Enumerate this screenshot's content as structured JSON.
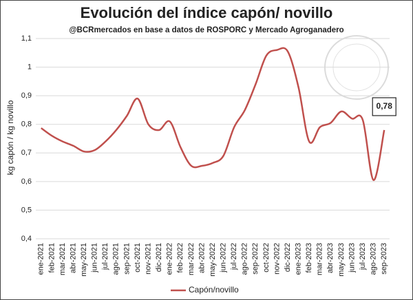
{
  "chart_data": {
    "type": "line",
    "title": "Evolución del índice capón/ novillo",
    "subtitle": "@BCRmercados  en base a datos de ROSPORC y Mercado Agroganadero",
    "y_label": "kg capón / kg novillo",
    "categories": [
      "ene-2021",
      "feb-2021",
      "mar-2021",
      "abr-2021",
      "may-2021",
      "jun-2021",
      "jul-2021",
      "ago-2021",
      "sep-2021",
      "oct-2021",
      "nov-2021",
      "dic-2021",
      "ene-2022",
      "feb-2022",
      "mar-2022",
      "abr-2022",
      "may-2022",
      "jun-2022",
      "jul-2022",
      "ago-2022",
      "sep-2022",
      "oct-2022",
      "nov-2022",
      "dic-2022",
      "ene-2023",
      "feb-2023",
      "mar-2023",
      "abr-2023",
      "may-2023",
      "jun-2023",
      "jul-2023",
      "ago-2023",
      "sep-2023"
    ],
    "series": [
      {
        "name": "Capón/novillo",
        "color": "#c0504d",
        "values": [
          0.787,
          0.76,
          0.74,
          0.725,
          0.705,
          0.71,
          0.74,
          0.78,
          0.83,
          0.89,
          0.8,
          0.78,
          0.81,
          0.72,
          0.655,
          0.655,
          0.665,
          0.69,
          0.79,
          0.85,
          0.94,
          1.04,
          1.06,
          1.055,
          0.93,
          0.74,
          0.79,
          0.805,
          0.845,
          0.82,
          0.815,
          0.605,
          0.78
        ]
      }
    ],
    "value_labels": {
      "32": "0,78"
    },
    "ylim": [
      0.4,
      1.1
    ],
    "yticks": [
      {
        "value": 0.4,
        "label": "0,4"
      },
      {
        "value": 0.5,
        "label": "0,5"
      },
      {
        "value": 0.6,
        "label": "0,6"
      },
      {
        "value": 0.7,
        "label": "0,7"
      },
      {
        "value": 0.8,
        "label": "0,8"
      },
      {
        "value": 0.9,
        "label": "0,9"
      },
      {
        "value": 1,
        "label": "1"
      },
      {
        "value": 1.1,
        "label": "1,1"
      }
    ],
    "grid": true,
    "legend": "bottom"
  }
}
